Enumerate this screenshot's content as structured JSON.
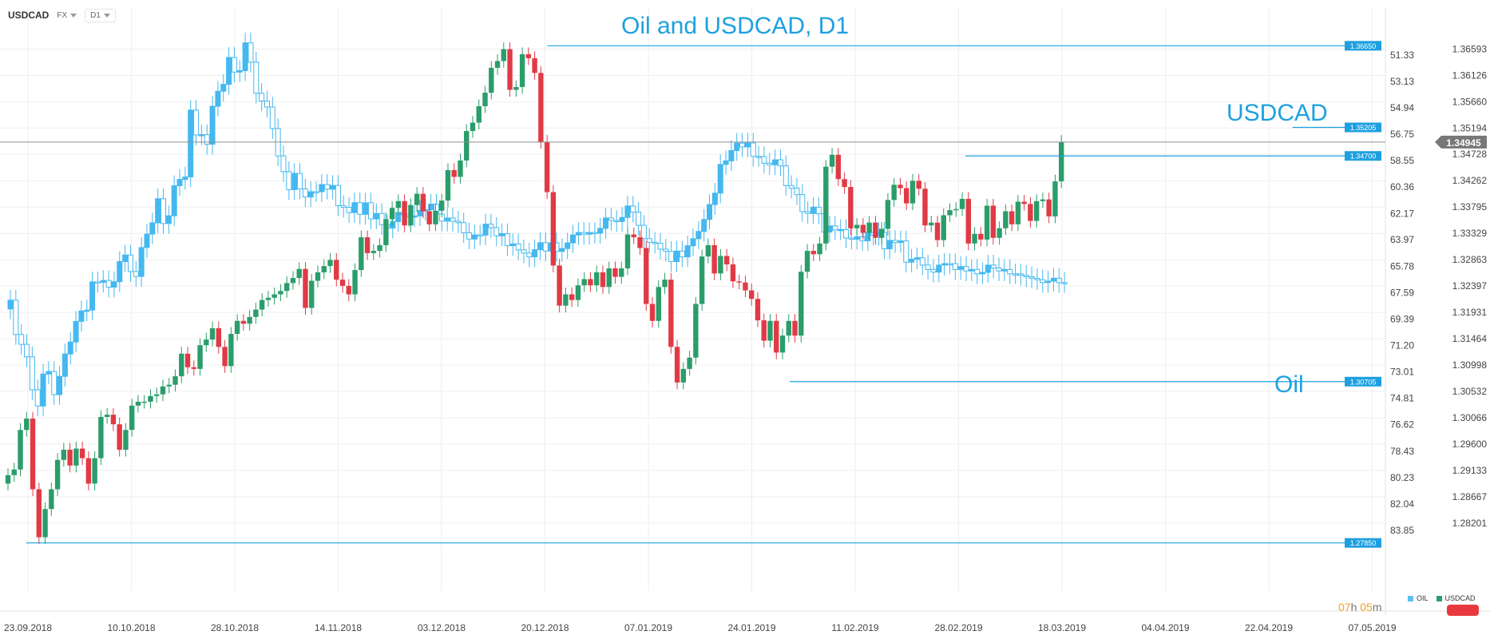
{
  "toolbar": {
    "symbol": "USDCAD",
    "market": "FX",
    "timeframe": "D1"
  },
  "timer": {
    "hours": "07",
    "h_unit": "h",
    "minutes": "05",
    "m_unit": "m"
  },
  "legend": [
    {
      "name": "OIL",
      "color": "#5bc0f0"
    },
    {
      "name": "USDCAD",
      "color": "#2a9d6a"
    }
  ],
  "colors": {
    "up": "#2a9d6a",
    "down": "#e03a45",
    "oil": "#45b8ef",
    "level_line": "#1ea0e0",
    "current_line": "#8e8e8e",
    "grid": "#efefef",
    "label_bg": "#1ea0e0",
    "current_bg": "#777777"
  },
  "chart_data": {
    "type": "candlestick",
    "title": "Oil and USDCAD, D1",
    "annotations": [
      "USDCAD",
      "Oil"
    ],
    "x_ticks": [
      "23.09.2018",
      "10.10.2018",
      "28.10.2018",
      "14.11.2018",
      "03.12.2018",
      "20.12.2018",
      "07.01.2019",
      "24.01.2019",
      "11.02.2019",
      "28.02.2019",
      "18.03.2019",
      "04.04.2019",
      "22.04.2019",
      "07.05.2019"
    ],
    "usdcad_axis": {
      "ylim": [
        1.2745,
        1.36725
      ],
      "ticks": [
        "1.36593",
        "1.36126",
        "1.35660",
        "1.35194",
        "1.34728",
        "1.34262",
        "1.33795",
        "1.33329",
        "1.32863",
        "1.32397",
        "1.31931",
        "1.31464",
        "1.30998",
        "1.30532",
        "1.30066",
        "1.29600",
        "1.29133",
        "1.28667",
        "1.28201"
      ]
    },
    "oil_axis": {
      "ylim": [
        50.41,
        86.25
      ],
      "inverted": true,
      "ticks": [
        "51.33",
        "53.13",
        "54.94",
        "56.75",
        "58.55",
        "60.36",
        "62.17",
        "63.97",
        "65.78",
        "67.59",
        "69.39",
        "71.20",
        "73.01",
        "74.81",
        "76.62",
        "78.43",
        "80.23",
        "82.04",
        "83.85"
      ]
    },
    "current_price": "1.34945",
    "levels": [
      {
        "label": "1.36650",
        "value": 1.3665,
        "x_from": "2018-12-21"
      },
      {
        "label": "1.35205",
        "value": 1.35205,
        "x_from": "2019-04-23"
      },
      {
        "label": "1.34700",
        "value": 1.347,
        "x_from": "2019-02-28"
      },
      {
        "label": "1.30705",
        "value": 1.30705,
        "x_from": "2019-01-30"
      },
      {
        "label": "1.27850",
        "value": 1.2785,
        "x_from": "2018-09-26"
      }
    ],
    "usdcad_closes": [
      1.2905,
      1.2915,
      1.2985,
      1.3005,
      1.288,
      1.2795,
      1.2845,
      1.288,
      1.2932,
      1.295,
      1.2922,
      1.2952,
      1.2935,
      1.289,
      1.2935,
      1.3008,
      1.3012,
      1.2995,
      1.295,
      1.2985,
      1.3028,
      1.3035,
      1.3035,
      1.3045,
      1.3048,
      1.3062,
      1.3065,
      1.308,
      1.312,
      1.3096,
      1.3093,
      1.3135,
      1.3145,
      1.3165,
      1.3132,
      1.3098,
      1.3155,
      1.3178,
      1.3173,
      1.3185,
      1.3198,
      1.3215,
      1.3219,
      1.3225,
      1.3231,
      1.3245,
      1.3254,
      1.327,
      1.3201,
      1.3249,
      1.3264,
      1.3275,
      1.3286,
      1.3251,
      1.324,
      1.3225,
      1.3268,
      1.3326,
      1.3298,
      1.3302,
      1.3312,
      1.3358,
      1.3378,
      1.339,
      1.3347,
      1.3383,
      1.3403,
      1.3372,
      1.3349,
      1.3373,
      1.3391,
      1.3445,
      1.3433,
      1.3462,
      1.3514,
      1.3529,
      1.3558,
      1.3582,
      1.3626,
      1.3638,
      1.3659,
      1.3587,
      1.3592,
      1.365,
      1.3643,
      1.3617,
      1.3495,
      1.3406,
      1.3276,
      1.3205,
      1.3225,
      1.3215,
      1.3241,
      1.3252,
      1.3241,
      1.3264,
      1.3238,
      1.3271,
      1.3256,
      1.3271,
      1.3331,
      1.3326,
      1.3307,
      1.3208,
      1.3178,
      1.3238,
      1.3251,
      1.3132,
      1.3069,
      1.3093,
      1.3113,
      1.3208,
      1.3292,
      1.3312,
      1.3262,
      1.3293,
      1.3278,
      1.3248,
      1.3246,
      1.3232,
      1.3217,
      1.3179,
      1.3143,
      1.3178,
      1.3122,
      1.3152,
      1.3178,
      1.3152,
      1.3265,
      1.3302,
      1.3296,
      1.3315,
      1.3451,
      1.3472,
      1.3429,
      1.3415,
      1.3342,
      1.3348,
      1.3334,
      1.3352,
      1.3325,
      1.3341,
      1.3392,
      1.3419,
      1.3413,
      1.3386,
      1.3426,
      1.3412,
      1.3347,
      1.3352,
      1.3321,
      1.3365,
      1.3374,
      1.3376,
      1.3394,
      1.3315,
      1.3332,
      1.3322,
      1.3382,
      1.3325,
      1.3342,
      1.3372,
      1.3349,
      1.3389,
      1.3385,
      1.3355,
      1.339,
      1.3393,
      1.3363,
      1.3425,
      1.3495
    ],
    "oil_closes": [
      68.1,
      70.45,
      71.12,
      71.98,
      74.23,
      75.34,
      73.15,
      72.98,
      74.56,
      73.31,
      71.78,
      70.96,
      69.55,
      68.84,
      68.78,
      66.85,
      66.88,
      66.75,
      67.21,
      66.84,
      65.46,
      65.01,
      66.14,
      66.48,
      64.5,
      63.58,
      62.81,
      61.16,
      62.86,
      62.33,
      60.27,
      59.84,
      59.67,
      55.1,
      56.8,
      56.78,
      57.43,
      54.84,
      53.81,
      53.34,
      51.5,
      52.5,
      52.4,
      50.5,
      51.82,
      53.95,
      54.48,
      54.89,
      56.36,
      58.23,
      59.31,
      60.54,
      59.43,
      60.49,
      61.04,
      60.68,
      60.68,
      60.19,
      60.51,
      60.25,
      61.63,
      61.75,
      62.11,
      61.43,
      62.23,
      61.44,
      62.54,
      62.17,
      62.93,
      63.17,
      62.73,
      62.1,
      62.26,
      62.4,
      62.34,
      61.96,
      61.91,
      61.53,
      62.21,
      62.69,
      62.48,
      62.7,
      62.8,
      63.49,
      63.92,
      63.64,
      63.65,
      62.9,
      63.14,
      63.7,
      63.55,
      64.37,
      64.25,
      64.66,
      64.88,
      65.14,
      64.65,
      64.17,
      64.74,
      64.18,
      64.77,
      64.57,
      64.18,
      63.64,
      63.47,
      63.59,
      63.47,
      63.52,
      63.19,
      62.48,
      62.65,
      62.72,
      62.44,
      61.66,
      62.08,
      62.98,
      63.89,
      64.14,
      64.21,
      64.61,
      64.76,
      65.46,
      64.74,
      65.14,
      64.38,
      63.9,
      63.4,
      62.58,
      61.56,
      60.78,
      58.82,
      58.57,
      57.87,
      57.36,
      57.62,
      57.35,
      58.26,
      58.28,
      58.73,
      58.84,
      58.5,
      58.91,
      60.26,
      60.44,
      60.88,
      62.05,
      62.17,
      61.74,
      62.19,
      63.44,
      63.02,
      63.3,
      63.27,
      63.85,
      63.93,
      63.76,
      64.04,
      63.47,
      63.66,
      63.46,
      64.59,
      64.01,
      64.16,
      64.05,
      65.5,
      65.3,
      65.2,
      65.7,
      66.0,
      66.18
    ],
    "oil_extra_closes": [
      65.7,
      65.6,
      65.6,
      66.0,
      65.8,
      66.1,
      66.0,
      66.3,
      66.2,
      65.7,
      65.9,
      66.1,
      66.0,
      66.3,
      66.3,
      66.4,
      66.5,
      66.6,
      66.7,
      66.9,
      66.8,
      66.6,
      66.9,
      66.9
    ]
  }
}
